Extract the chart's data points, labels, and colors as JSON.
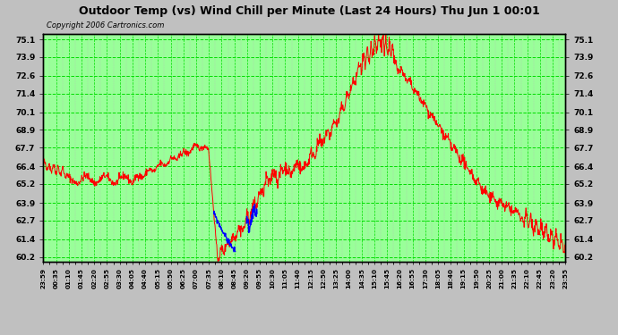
{
  "title": "Outdoor Temp (vs) Wind Chill per Minute (Last 24 Hours) Thu Jun 1 00:01",
  "copyright": "Copyright 2006 Cartronics.com",
  "fig_bg": "#c0c0c0",
  "plot_bg_color": "#99ff99",
  "yticks": [
    60.2,
    61.4,
    62.7,
    63.9,
    65.2,
    66.4,
    67.7,
    68.9,
    70.1,
    71.4,
    72.6,
    73.9,
    75.1
  ],
  "ylim": [
    59.9,
    75.5
  ],
  "xtick_labels": [
    "23:59",
    "00:35",
    "01:10",
    "01:45",
    "02:20",
    "02:55",
    "03:30",
    "04:05",
    "04:40",
    "05:15",
    "05:50",
    "06:25",
    "07:00",
    "07:35",
    "08:10",
    "08:45",
    "09:20",
    "09:55",
    "10:30",
    "11:05",
    "11:40",
    "12:15",
    "12:50",
    "13:25",
    "14:00",
    "14:35",
    "15:10",
    "15:45",
    "16:20",
    "16:55",
    "17:30",
    "18:05",
    "18:40",
    "19:15",
    "19:50",
    "20:25",
    "21:00",
    "21:35",
    "22:10",
    "22:45",
    "23:20",
    "23:55"
  ],
  "grid_major_color": "#00dd00",
  "grid_minor_color": "#aaaaaa",
  "line_color_red": "#ff0000",
  "line_color_blue": "#0000ff"
}
